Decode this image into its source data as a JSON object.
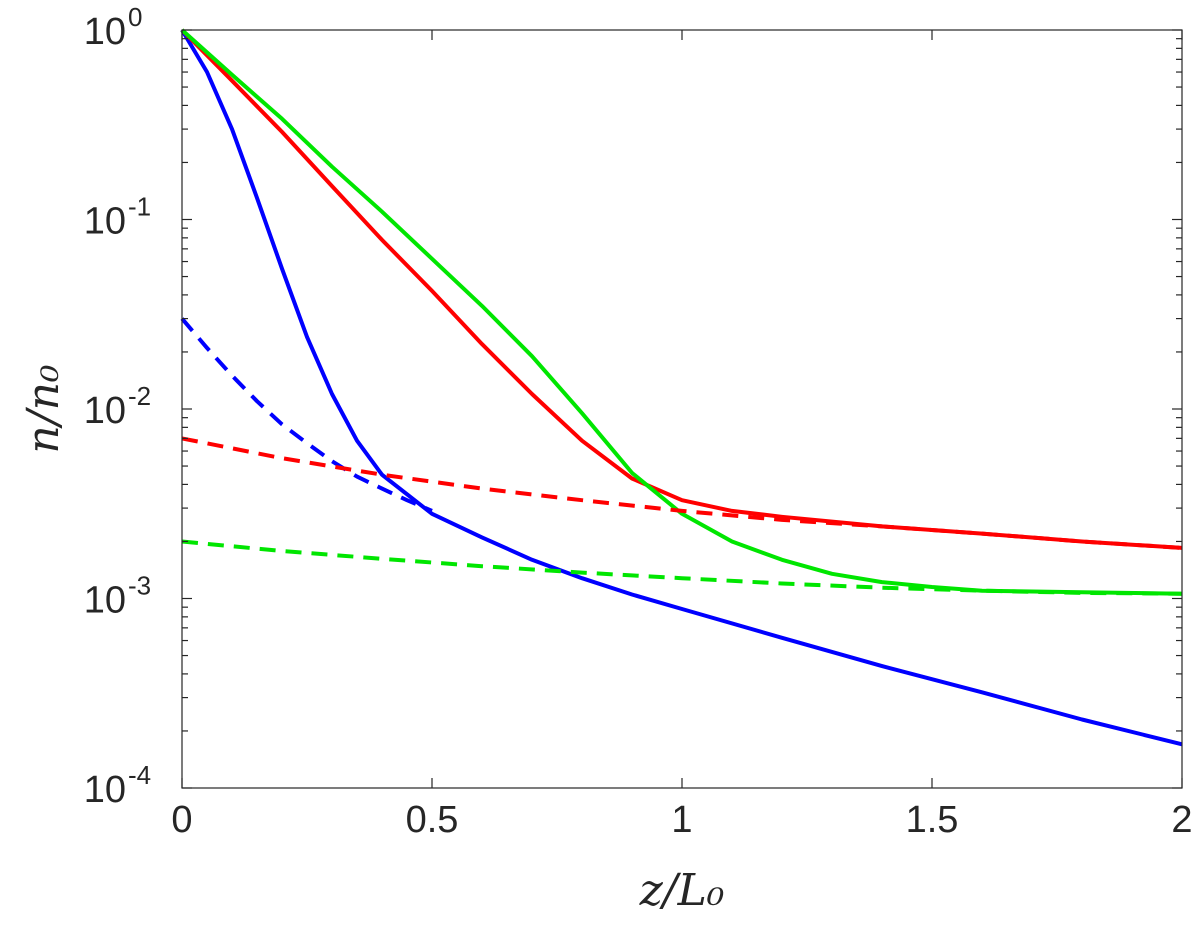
{
  "chart_data": {
    "type": "line",
    "xlabel": "z/L₀",
    "ylabel": "n/n₀",
    "xlim": [
      0,
      2
    ],
    "ylim": [
      0.0001,
      1
    ],
    "yscale": "log",
    "grid": false,
    "legend": "none",
    "x_ticks": [
      {
        "value": 0,
        "label": "0"
      },
      {
        "value": 0.5,
        "label": "0.5"
      },
      {
        "value": 1,
        "label": "1"
      },
      {
        "value": 1.5,
        "label": "1.5"
      },
      {
        "value": 2,
        "label": "2"
      }
    ],
    "y_ticks": [
      {
        "value": 1,
        "base": "10",
        "exp": "0"
      },
      {
        "value": 0.1,
        "base": "10",
        "exp": "-1"
      },
      {
        "value": 0.01,
        "base": "10",
        "exp": "-2"
      },
      {
        "value": 0.001,
        "base": "10",
        "exp": "-3"
      },
      {
        "value": 0.0001,
        "base": "10",
        "exp": "-4"
      }
    ],
    "series": [
      {
        "color": "#0000ff",
        "style": "solid",
        "x": [
          0,
          0.05,
          0.1,
          0.15,
          0.2,
          0.25,
          0.3,
          0.35,
          0.4,
          0.5,
          0.6,
          0.7,
          0.8,
          0.9,
          1.0,
          1.2,
          1.4,
          1.6,
          1.8,
          2.0
        ],
        "y": [
          1.0,
          0.6,
          0.3,
          0.13,
          0.055,
          0.024,
          0.012,
          0.0068,
          0.0045,
          0.0028,
          0.0021,
          0.0016,
          0.00128,
          0.00105,
          0.00088,
          0.00062,
          0.00044,
          0.00032,
          0.00023,
          0.00017
        ]
      },
      {
        "color": "#ff0000",
        "style": "solid",
        "x": [
          0,
          0.1,
          0.2,
          0.3,
          0.4,
          0.5,
          0.6,
          0.7,
          0.8,
          0.9,
          1.0,
          1.1,
          1.2,
          1.4,
          1.6,
          1.8,
          2.0
        ],
        "y": [
          1.0,
          0.54,
          0.29,
          0.15,
          0.078,
          0.042,
          0.022,
          0.012,
          0.0068,
          0.0043,
          0.0033,
          0.0029,
          0.0027,
          0.0024,
          0.0022,
          0.002,
          0.00185
        ]
      },
      {
        "color": "#00e600",
        "style": "solid",
        "x": [
          0,
          0.1,
          0.2,
          0.3,
          0.4,
          0.5,
          0.6,
          0.7,
          0.8,
          0.9,
          1.0,
          1.1,
          1.2,
          1.3,
          1.4,
          1.5,
          1.6,
          1.8,
          2.0
        ],
        "y": [
          1.0,
          0.58,
          0.34,
          0.19,
          0.11,
          0.062,
          0.035,
          0.019,
          0.0095,
          0.0046,
          0.0028,
          0.002,
          0.0016,
          0.00135,
          0.00122,
          0.00115,
          0.0011,
          0.00108,
          0.00106
        ]
      },
      {
        "color": "#0000ff",
        "style": "dashed",
        "x": [
          0,
          0.05,
          0.1,
          0.15,
          0.2,
          0.25,
          0.3,
          0.35,
          0.4,
          0.45,
          0.5
        ],
        "y": [
          0.03,
          0.021,
          0.015,
          0.011,
          0.0083,
          0.0066,
          0.0053,
          0.0044,
          0.0038,
          0.0033,
          0.0029
        ]
      },
      {
        "color": "#ff0000",
        "style": "dashed",
        "x": [
          0,
          0.2,
          0.4,
          0.6,
          0.8,
          1.0,
          1.2,
          1.4,
          1.6,
          1.8,
          2.0
        ],
        "y": [
          0.007,
          0.0055,
          0.0045,
          0.0038,
          0.0033,
          0.0029,
          0.0026,
          0.0024,
          0.0022,
          0.002,
          0.00185
        ]
      },
      {
        "color": "#00e600",
        "style": "dashed",
        "x": [
          0,
          0.2,
          0.4,
          0.6,
          0.8,
          1.0,
          1.2,
          1.4,
          1.6,
          1.8,
          2.0
        ],
        "y": [
          0.002,
          0.00178,
          0.00162,
          0.00148,
          0.00137,
          0.00128,
          0.0012,
          0.00114,
          0.0011,
          0.00107,
          0.00106
        ]
      }
    ]
  }
}
